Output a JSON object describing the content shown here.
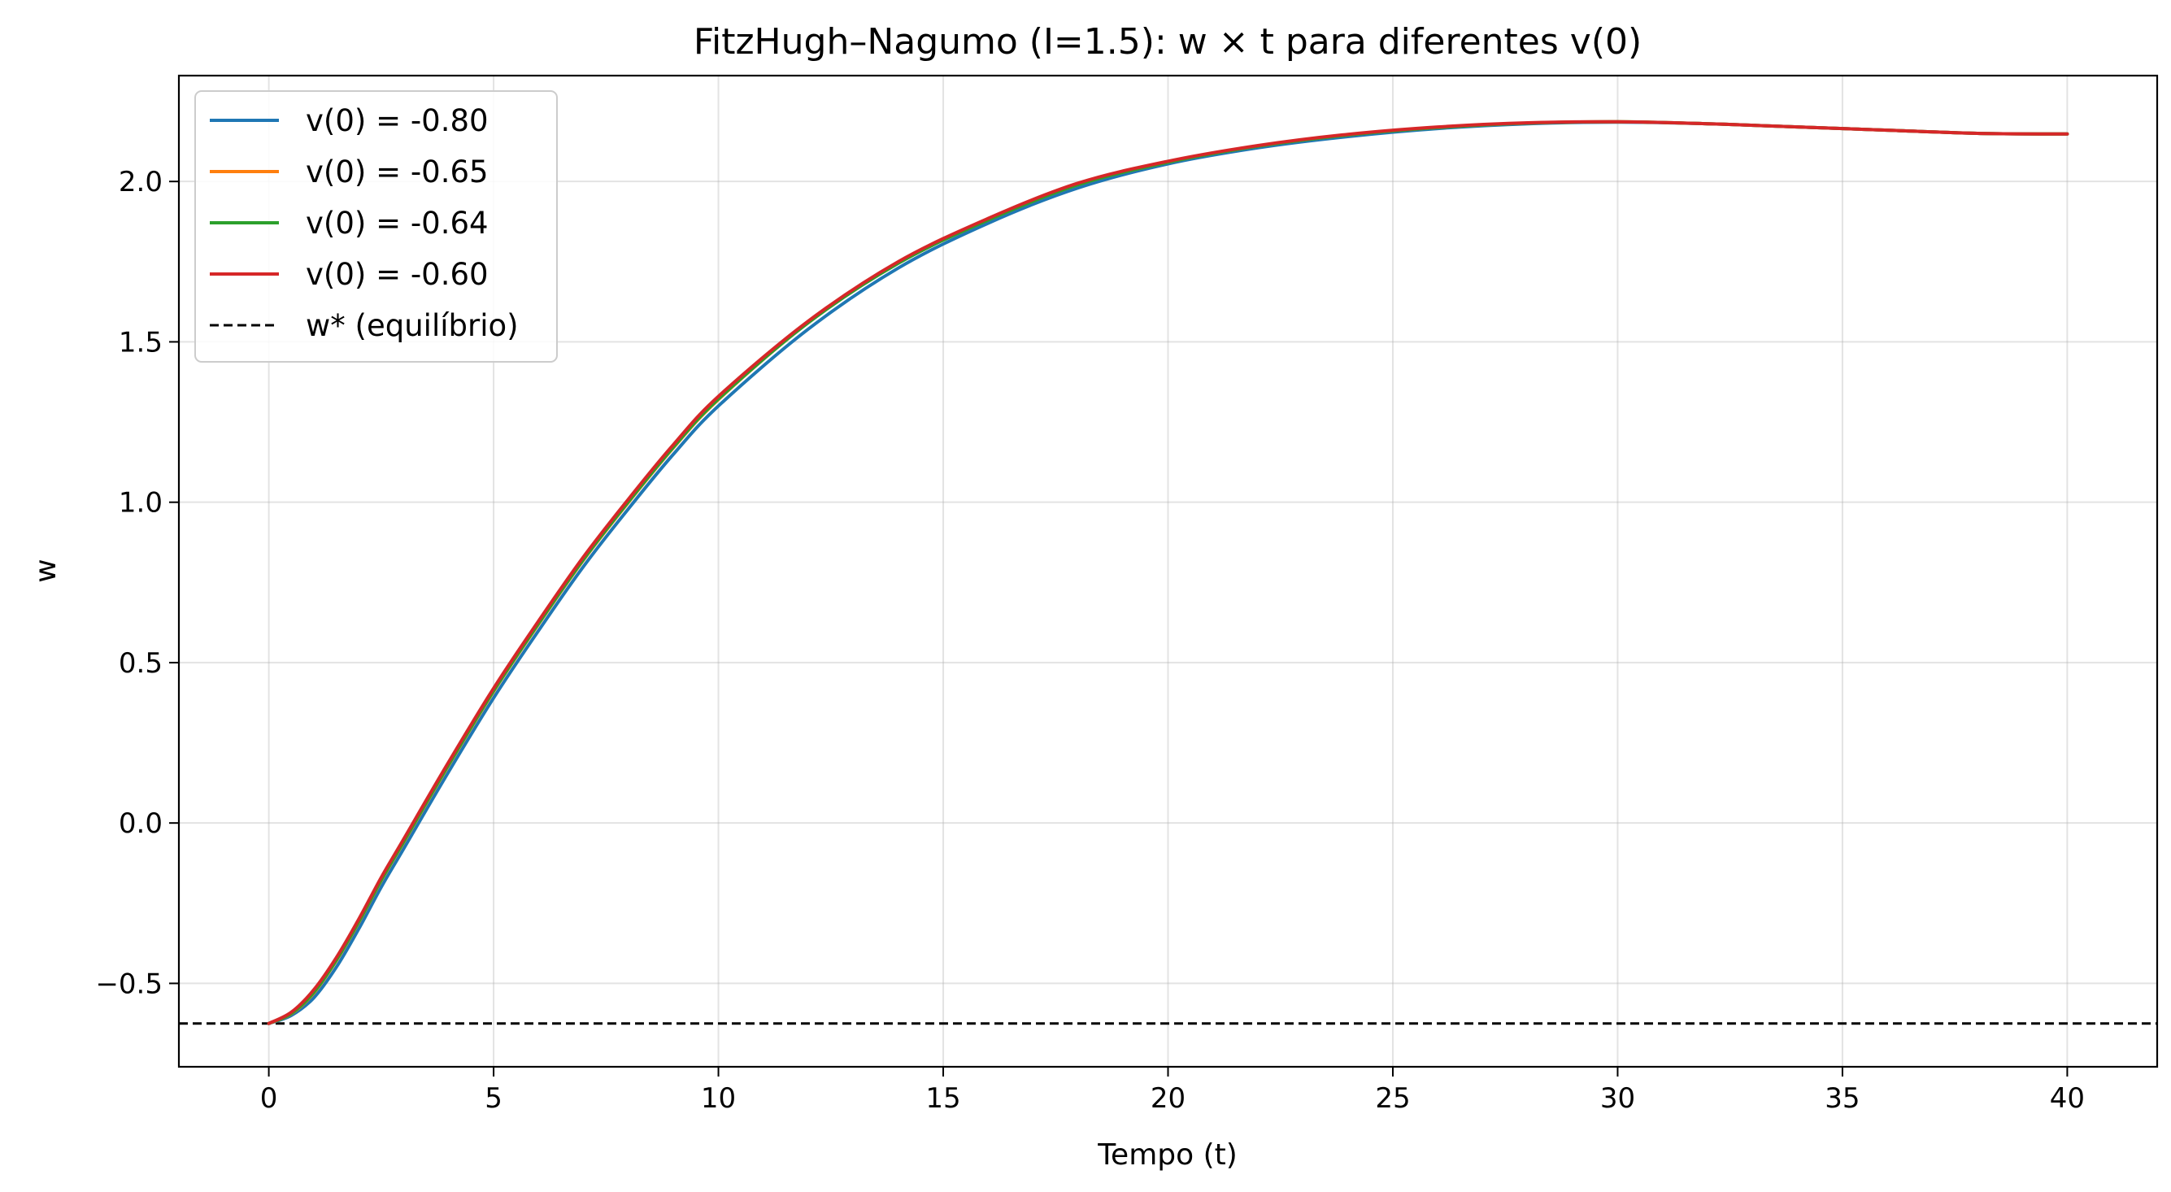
{
  "chart_data": {
    "type": "line",
    "title": "FitzHugh–Nagumo (I=1.5): w × t para diferentes v(0)",
    "xlabel": "Tempo (t)",
    "ylabel": "w",
    "xlim": [
      -2,
      42
    ],
    "ylim": [
      -0.76,
      2.33
    ],
    "xticks": [
      0,
      5,
      10,
      15,
      20,
      25,
      30,
      35,
      40
    ],
    "xtick_labels": [
      "0",
      "5",
      "10",
      "15",
      "20",
      "25",
      "30",
      "35",
      "40"
    ],
    "yticks": [
      -0.5,
      0.0,
      0.5,
      1.0,
      1.5,
      2.0
    ],
    "ytick_labels": [
      "−0.5",
      "0.0",
      "0.5",
      "1.0",
      "1.5",
      "2.0"
    ],
    "grid": true,
    "legend_position": "upper-left",
    "series": [
      {
        "name": "v(0) = -0.80",
        "color": "#1f77b4",
        "style": "solid",
        "x": [
          0,
          0.5,
          1,
          1.5,
          2,
          2.5,
          3,
          4,
          5,
          6,
          7,
          8,
          9,
          10,
          12,
          14,
          16,
          18,
          20,
          22,
          24,
          26,
          28,
          30,
          32,
          34,
          36,
          38,
          40
        ],
        "y": [
          -0.625,
          -0.6,
          -0.545,
          -0.45,
          -0.33,
          -0.2,
          -0.08,
          0.16,
          0.39,
          0.6,
          0.8,
          0.98,
          1.15,
          1.3,
          1.54,
          1.73,
          1.87,
          1.98,
          2.055,
          2.105,
          2.14,
          2.165,
          2.18,
          2.185,
          2.18,
          2.17,
          2.16,
          2.15,
          2.148
        ]
      },
      {
        "name": "v(0) = -0.65",
        "color": "#ff7f0e",
        "style": "solid",
        "x": [
          0,
          0.5,
          1,
          1.5,
          2,
          2.5,
          3,
          4,
          5,
          6,
          7,
          8,
          9,
          10,
          12,
          14,
          16,
          18,
          20,
          22,
          24,
          26,
          28,
          30,
          32,
          34,
          36,
          38,
          40
        ],
        "y": [
          -0.625,
          -0.595,
          -0.53,
          -0.43,
          -0.31,
          -0.18,
          -0.06,
          0.18,
          0.41,
          0.62,
          0.82,
          1.0,
          1.17,
          1.32,
          1.56,
          1.745,
          1.88,
          1.99,
          2.06,
          2.11,
          2.145,
          2.168,
          2.182,
          2.186,
          2.18,
          2.17,
          2.16,
          2.15,
          2.148
        ]
      },
      {
        "name": "v(0) = -0.64",
        "color": "#2ca02c",
        "style": "solid",
        "x": [
          0,
          0.5,
          1,
          1.5,
          2,
          2.5,
          3,
          4,
          5,
          6,
          7,
          8,
          9,
          10,
          12,
          14,
          16,
          18,
          20,
          22,
          24,
          26,
          28,
          30,
          32,
          34,
          36,
          38,
          40
        ],
        "y": [
          -0.625,
          -0.594,
          -0.528,
          -0.428,
          -0.308,
          -0.178,
          -0.058,
          0.182,
          0.412,
          0.622,
          0.822,
          1.002,
          1.172,
          1.322,
          1.56,
          1.745,
          1.88,
          1.99,
          2.06,
          2.11,
          2.145,
          2.168,
          2.182,
          2.186,
          2.18,
          2.17,
          2.16,
          2.15,
          2.148
        ]
      },
      {
        "name": "v(0) = -0.60",
        "color": "#d62728",
        "style": "solid",
        "x": [
          0,
          0.5,
          1,
          1.5,
          2,
          2.5,
          3,
          4,
          5,
          6,
          7,
          8,
          9,
          10,
          12,
          14,
          16,
          18,
          20,
          22,
          24,
          26,
          28,
          30,
          32,
          34,
          36,
          38,
          40
        ],
        "y": [
          -0.625,
          -0.59,
          -0.52,
          -0.42,
          -0.3,
          -0.17,
          -0.05,
          0.19,
          0.42,
          0.63,
          0.83,
          1.01,
          1.18,
          1.33,
          1.565,
          1.75,
          1.885,
          1.995,
          2.063,
          2.112,
          2.147,
          2.17,
          2.183,
          2.186,
          2.18,
          2.17,
          2.16,
          2.15,
          2.148
        ]
      }
    ],
    "hlines": [
      {
        "name": "w* (equilíbrio)",
        "y": -0.625,
        "color": "#000000",
        "style": "dashed"
      }
    ]
  }
}
